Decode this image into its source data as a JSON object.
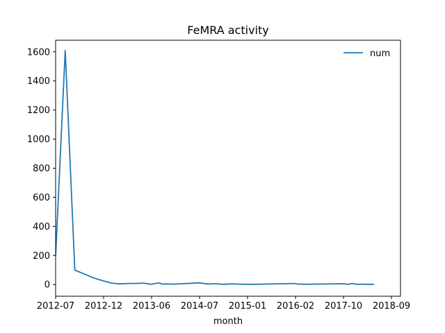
{
  "chart_data": {
    "type": "line",
    "title": "FeMRA activity",
    "xlabel": "month",
    "ylabel": "",
    "x_ticks": [
      "2012-07",
      "2012-12",
      "2013-06",
      "2014-07",
      "2015-01",
      "2016-02",
      "2017-10",
      "2018-09"
    ],
    "y_ticks": [
      "0",
      "200",
      "400",
      "600",
      "800",
      "1000",
      "1200",
      "1400",
      "1600"
    ],
    "ylim": [
      -80,
      1680
    ],
    "legend": {
      "position": "upper right"
    },
    "series": [
      {
        "name": "num",
        "color": "#1f77b4",
        "points": [
          [
            "2012-07",
            200
          ],
          [
            "2012-08",
            1610
          ],
          [
            "2012-09",
            100
          ],
          [
            "2012-10",
            72
          ],
          [
            "2012-11",
            45
          ],
          [
            "2012-12",
            25
          ],
          [
            "2013-01",
            10
          ],
          [
            "2013-02",
            5
          ],
          [
            "2013-03",
            8
          ],
          [
            "2013-04",
            8
          ],
          [
            "2013-05",
            10
          ],
          [
            "2013-06",
            2
          ],
          [
            "2013-07",
            8
          ],
          [
            "2013-08",
            12
          ],
          [
            "2013-09",
            3
          ],
          [
            "2013-10",
            5
          ],
          [
            "2013-11",
            4
          ],
          [
            "2013-12",
            3
          ],
          [
            "2014-07",
            12
          ],
          [
            "2014-08",
            4
          ],
          [
            "2014-09",
            6
          ],
          [
            "2014-10",
            2
          ],
          [
            "2014-11",
            5
          ],
          [
            "2014-12",
            3
          ],
          [
            "2015-01",
            2
          ],
          [
            "2015-02",
            2
          ],
          [
            "2015-03",
            2
          ],
          [
            "2016-02",
            8
          ],
          [
            "2016-03",
            2
          ],
          [
            "2016-04",
            5
          ],
          [
            "2016-05",
            2
          ],
          [
            "2017-10",
            6
          ],
          [
            "2017-11",
            2
          ],
          [
            "2017-12",
            8
          ],
          [
            "2018-01",
            2
          ],
          [
            "2018-02",
            3
          ],
          [
            "2018-03",
            2
          ],
          [
            "2018-04",
            2
          ],
          [
            "2018-05",
            2
          ]
        ]
      }
    ]
  }
}
